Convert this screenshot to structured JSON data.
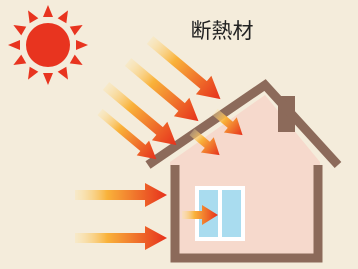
{
  "label": "断熱材"
}
